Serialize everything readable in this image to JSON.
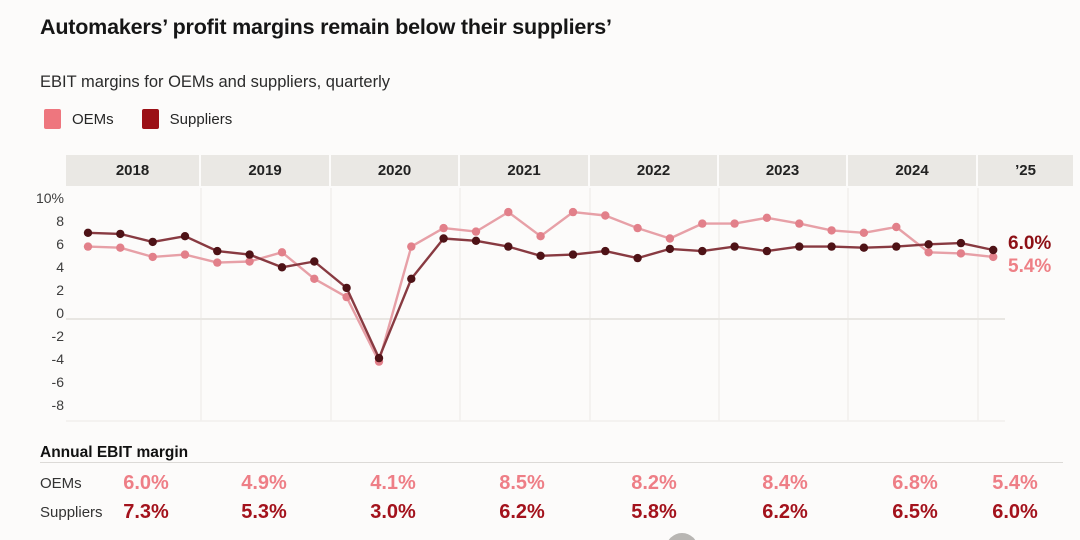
{
  "header": {
    "title": "Automakers’ profit margins remain below their suppliers’",
    "subtitle": "EBIT margins for OEMs and suppliers, quarterly"
  },
  "legend": {
    "oems": "OEMs",
    "suppliers": "Suppliers"
  },
  "years": [
    "2018",
    "2019",
    "2020",
    "2021",
    "2022",
    "2023",
    "2024",
    "’25"
  ],
  "y_axis": [
    "10%",
    "8",
    "6",
    "4",
    "2",
    "0",
    "-2",
    "-4",
    "-6",
    "-8"
  ],
  "end_labels": {
    "suppliers": "6.0%",
    "oems": "5.4%"
  },
  "annual": {
    "heading": "Annual EBIT margin",
    "rows": [
      {
        "label": "OEMs",
        "values": [
          "6.0%",
          "4.9%",
          "4.1%",
          "8.5%",
          "8.2%",
          "8.4%",
          "6.8%",
          "5.4%"
        ]
      },
      {
        "label": "Suppliers",
        "values": [
          "7.3%",
          "5.3%",
          "3.0%",
          "6.2%",
          "5.8%",
          "6.2%",
          "6.5%",
          "6.0%"
        ]
      }
    ]
  },
  "colors": {
    "oem_swatch": "#ee767e",
    "oem_line": "#e7a0a7",
    "oem_dot": "#e2808a",
    "supplier_swatch": "#9b1016",
    "supplier_line": "#883a41",
    "supplier_dot": "#4e1216",
    "oem_value_text": "#ee7e86",
    "supplier_value_text": "#a3121c",
    "oem_end_label": "#ee8086",
    "supplier_end_label": "#8d1016",
    "year_band_bg": "#eae8e4",
    "grid_line": "#f2f0ed",
    "zero_line": "#e8e6e2"
  },
  "chart_data": {
    "type": "line",
    "title": "Automakers’ profit margins remain below their suppliers’",
    "subtitle": "EBIT margins for OEMs and suppliers, quarterly",
    "unit": "percent",
    "x": [
      "2018 Q1",
      "2018 Q2",
      "2018 Q3",
      "2018 Q4",
      "2019 Q1",
      "2019 Q2",
      "2019 Q3",
      "2019 Q4",
      "2020 Q1",
      "2020 Q2",
      "2020 Q3",
      "2020 Q4",
      "2021 Q1",
      "2021 Q2",
      "2021 Q3",
      "2021 Q4",
      "2022 Q1",
      "2022 Q2",
      "2022 Q3",
      "2022 Q4",
      "2023 Q1",
      "2023 Q2",
      "2023 Q3",
      "2023 Q4",
      "2024 Q1",
      "2024 Q2",
      "2024 Q3",
      "2024 Q4",
      "2025 Q1"
    ],
    "series": [
      {
        "name": "OEMs",
        "color": "#ee767e",
        "values": [
          6.3,
          6.2,
          5.4,
          5.6,
          4.9,
          5.0,
          5.8,
          3.5,
          1.9,
          -3.7,
          6.3,
          7.9,
          7.6,
          9.3,
          7.2,
          9.3,
          9.0,
          7.9,
          7.0,
          8.3,
          8.3,
          8.8,
          8.3,
          7.7,
          7.5,
          8.0,
          5.8,
          5.7,
          5.4
        ]
      },
      {
        "name": "Suppliers",
        "color": "#9b1016",
        "values": [
          7.5,
          7.4,
          6.7,
          7.2,
          5.9,
          5.6,
          4.5,
          5.0,
          2.7,
          -3.4,
          3.5,
          7.0,
          6.8,
          6.3,
          5.5,
          5.6,
          5.9,
          5.3,
          6.1,
          5.9,
          6.3,
          5.9,
          6.3,
          6.3,
          6.2,
          6.3,
          6.5,
          6.6,
          6.0
        ]
      }
    ],
    "ylim": [
      -8,
      10
    ],
    "yticks": [
      "10%",
      "8",
      "6",
      "4",
      "2",
      "0",
      "-2",
      "-4",
      "-6",
      "-8"
    ],
    "x_band_labels": [
      "2018",
      "2019",
      "2020",
      "2021",
      "2022",
      "2023",
      "2024",
      "’25"
    ],
    "end_labels": {
      "Suppliers": "6.0%",
      "OEMs": "5.4%"
    },
    "legend_position": "top-left",
    "grid": "zero line + year-boundary verticals",
    "annual_table": {
      "heading": "Annual EBIT margin",
      "years": [
        "2018",
        "2019",
        "2020",
        "2021",
        "2022",
        "2023",
        "2024",
        "'25"
      ],
      "OEMs": [
        6.0,
        4.9,
        4.1,
        8.5,
        8.2,
        8.4,
        6.8,
        5.4
      ],
      "Suppliers": [
        7.3,
        5.3,
        3.0,
        6.2,
        5.8,
        6.2,
        6.5,
        6.0
      ]
    }
  }
}
